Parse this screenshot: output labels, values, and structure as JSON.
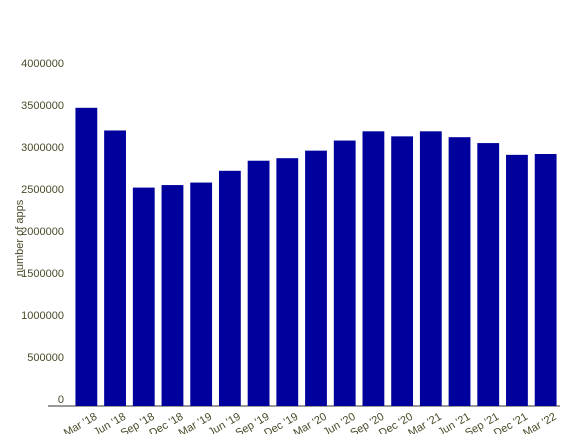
{
  "chart_data": {
    "type": "bar",
    "y_label": "number of apps",
    "categories": [
      "Mar '18",
      "Jun '18",
      "Sep '18",
      "Dec '18",
      "Mar '19",
      "Jun '19",
      "Sep '19",
      "Dec '19",
      "Mar '20",
      "Jun '20",
      "Sep '20",
      "Dec '20",
      "Mar '21",
      "Jun '21",
      "Sep '21",
      "Dec '21",
      "Mar '22"
    ],
    "values": [
      3550000,
      3280000,
      2600000,
      2630000,
      2660000,
      2800000,
      2920000,
      2950000,
      3040000,
      3160000,
      3270000,
      3210000,
      3270000,
      3200000,
      3130000,
      2990000,
      3000000
    ],
    "color": "#00009c",
    "ylim": [
      0,
      4000000
    ],
    "yticks": [
      0,
      500000,
      1000000,
      1500000,
      2000000,
      2500000,
      3000000,
      3500000,
      4000000
    ],
    "grid": false
  }
}
